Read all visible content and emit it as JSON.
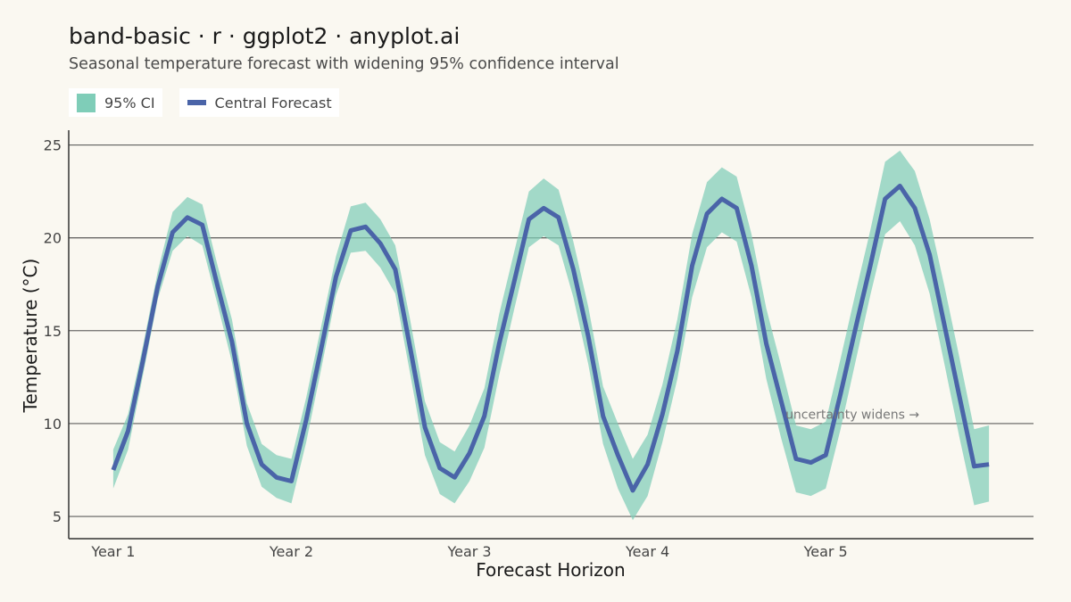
{
  "chart_data": {
    "type": "area",
    "title": "band-basic · r · ggplot2 · anyplot.ai",
    "subtitle": "Seasonal temperature forecast with widening 95% confidence interval",
    "xlabel": "Forecast Horizon",
    "ylabel": "Temperature (°C)",
    "x_ticks": [
      {
        "x": 1,
        "label": "Year 1"
      },
      {
        "x": 13,
        "label": "Year 2"
      },
      {
        "x": 25,
        "label": "Year 3"
      },
      {
        "x": 37,
        "label": "Year 4"
      },
      {
        "x": 49,
        "label": "Year 5"
      }
    ],
    "y_ticks": [
      5,
      10,
      15,
      20,
      25
    ],
    "xlim": [
      -2,
      63
    ],
    "ylim": [
      3.8,
      25.8
    ],
    "grid": "horizontal",
    "legend_position": "top-left",
    "legend": [
      {
        "label": "95% CI",
        "kind": "band"
      },
      {
        "label": "Central Forecast",
        "kind": "line"
      }
    ],
    "annotation": {
      "text": "uncertainty widens →",
      "x": 50.8,
      "y": 10.5
    },
    "colors": {
      "band": "#7FCDB8",
      "line": "#4A64A8",
      "grid": "#333333",
      "background": "#FAF8F1"
    },
    "x": [
      1,
      2,
      3,
      4,
      5,
      6,
      7,
      8,
      9,
      10,
      11,
      12,
      13,
      14,
      15,
      16,
      17,
      18,
      19,
      20,
      21,
      22,
      23,
      24,
      25,
      26,
      27,
      28,
      29,
      30,
      31,
      32,
      33,
      34,
      35,
      36,
      37,
      38,
      39,
      40,
      41,
      42,
      43,
      44,
      45,
      46,
      47,
      48,
      49,
      50,
      51,
      52,
      53,
      54,
      55,
      56,
      57,
      58,
      59,
      60
    ],
    "series": [
      {
        "name": "Central Forecast",
        "values": [
          7.5,
          9.6,
          13.4,
          17.4,
          20.3,
          21.1,
          20.7,
          17.5,
          14.4,
          10.0,
          7.8,
          7.1,
          6.9,
          10.2,
          14.0,
          17.9,
          20.4,
          20.6,
          19.7,
          18.3,
          14.1,
          9.8,
          7.6,
          7.1,
          8.4,
          10.4,
          14.3,
          17.6,
          21.0,
          21.6,
          21.1,
          18.3,
          14.7,
          10.4,
          8.3,
          6.4,
          7.8,
          10.5,
          13.9,
          18.5,
          21.3,
          22.1,
          21.6,
          18.5,
          14.3,
          11.2,
          8.1,
          7.9,
          8.3,
          11.6,
          15.1,
          18.5,
          22.1,
          22.8,
          21.6,
          19.1,
          15.3,
          11.5,
          7.7,
          7.8
        ]
      },
      {
        "name": "95% CI",
        "lower": [
          6.5,
          8.6,
          12.6,
          16.7,
          19.3,
          20.1,
          19.6,
          16.5,
          13.3,
          8.8,
          6.6,
          6.0,
          5.7,
          9.0,
          12.9,
          16.9,
          19.2,
          19.3,
          18.4,
          17.0,
          12.7,
          8.3,
          6.2,
          5.7,
          6.9,
          8.7,
          12.6,
          16.1,
          19.5,
          20.1,
          19.6,
          16.8,
          13.2,
          8.9,
          6.5,
          4.8,
          6.1,
          9.0,
          12.4,
          16.8,
          19.5,
          20.3,
          19.8,
          16.8,
          12.4,
          9.2,
          6.3,
          6.1,
          6.5,
          9.7,
          13.3,
          16.9,
          20.2,
          20.9,
          19.6,
          17.0,
          13.2,
          9.3,
          5.6,
          5.8
        ],
        "upper": [
          8.6,
          10.5,
          14.2,
          18.2,
          21.4,
          22.2,
          21.8,
          18.6,
          15.6,
          11.1,
          8.9,
          8.3,
          8.1,
          11.4,
          15.2,
          19.0,
          21.7,
          21.9,
          21.0,
          19.6,
          15.6,
          11.2,
          9.0,
          8.5,
          9.9,
          11.9,
          15.9,
          19.2,
          22.5,
          23.2,
          22.6,
          19.8,
          16.3,
          12.0,
          10.0,
          8.1,
          9.4,
          12.1,
          15.6,
          20.2,
          23.0,
          23.8,
          23.3,
          20.2,
          16.2,
          13.1,
          9.9,
          9.7,
          10.1,
          13.5,
          17.0,
          20.4,
          24.1,
          24.7,
          23.6,
          21.0,
          17.4,
          13.6,
          9.7,
          9.9
        ]
      }
    ]
  }
}
